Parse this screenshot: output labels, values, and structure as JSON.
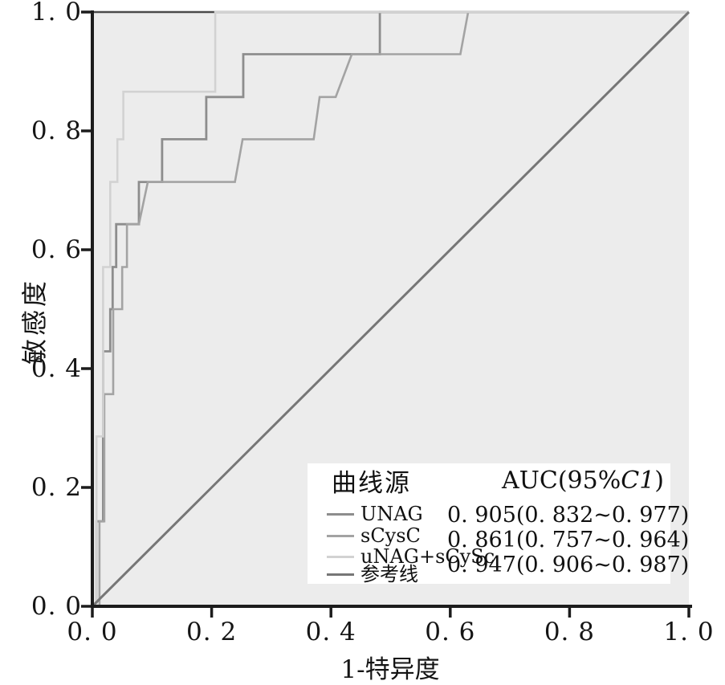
{
  "axes": {
    "x_title": "1-特异度",
    "y_title": "敏感度",
    "x_tick_labels": [
      "0. 0",
      "0. 2",
      "0. 4",
      "0. 6",
      "0. 8",
      "1. 0"
    ],
    "y_tick_labels": [
      "0. 0",
      "0. 2",
      "0. 4",
      "0. 6",
      "0. 8",
      "1. 0"
    ],
    "x_tick_values": [
      0,
      0.2,
      0.4,
      0.6,
      0.8,
      1.0
    ],
    "y_tick_values": [
      0,
      0.2,
      0.4,
      0.6,
      0.8,
      1.0
    ]
  },
  "legend": {
    "source_header": "曲线源",
    "auc_header_pre": "AUC(95%",
    "auc_header_ci": "C1",
    "auc_header_post": ")",
    "rows": [
      {
        "key": "unag",
        "label": "UNAG",
        "value": "0. 905(0. 832~0. 977)",
        "color": "#8d8d8d"
      },
      {
        "key": "scysc",
        "label": "sCysC",
        "value": "0. 861(0. 757~0. 964)",
        "color": "#a3a3a3"
      },
      {
        "key": "unag-scysc",
        "label": "uNAG+sCySc",
        "value": "0. 947(0. 906~0. 987)",
        "color": "#d2d2d2"
      },
      {
        "key": "reference",
        "label": "参考线",
        "value": "",
        "color": "#767676"
      }
    ]
  },
  "chart_data": {
    "type": "line",
    "subtype": "roc-curve",
    "title": "",
    "xlabel": "1-特异度",
    "ylabel": "敏感度",
    "xlim": [
      0,
      1
    ],
    "ylim": [
      0,
      1
    ],
    "grid": false,
    "legend_position": "lower-right",
    "x_ticks": [
      0,
      0.2,
      0.4,
      0.6,
      0.8,
      1.0
    ],
    "y_ticks": [
      0,
      0.2,
      0.4,
      0.6,
      0.8,
      1.0
    ],
    "colors": {
      "plot_background": "#ececec",
      "axis": "#1c1c1c",
      "top_frame": "#4a4a4a",
      "text": "#151515",
      "legend_background": "#ffffff"
    },
    "series": [
      {
        "key": "unag",
        "name": "UNAG",
        "auc": 0.905,
        "ci_low": 0.832,
        "ci_high": 0.977,
        "color": "#8d8d8d",
        "stroke_width": 2.8,
        "points": [
          [
            0,
            0
          ],
          [
            0.007,
            0
          ],
          [
            0.007,
            0.143
          ],
          [
            0.018,
            0.143
          ],
          [
            0.018,
            0.429
          ],
          [
            0.03,
            0.429
          ],
          [
            0.03,
            0.5
          ],
          [
            0.034,
            0.5
          ],
          [
            0.034,
            0.571
          ],
          [
            0.04,
            0.571
          ],
          [
            0.04,
            0.643
          ],
          [
            0.078,
            0.643
          ],
          [
            0.078,
            0.714
          ],
          [
            0.117,
            0.714
          ],
          [
            0.117,
            0.786
          ],
          [
            0.191,
            0.786
          ],
          [
            0.191,
            0.857
          ],
          [
            0.253,
            0.857
          ],
          [
            0.253,
            0.929
          ],
          [
            0.482,
            0.929
          ],
          [
            0.482,
            1
          ],
          [
            1,
            1
          ]
        ]
      },
      {
        "key": "scysc",
        "name": "sCysC",
        "auc": 0.861,
        "ci_low": 0.757,
        "ci_high": 0.964,
        "color": "#a3a3a3",
        "stroke_width": 2.6,
        "points": [
          [
            0,
            0
          ],
          [
            0.012,
            0
          ],
          [
            0.012,
            0.143
          ],
          [
            0.02,
            0.143
          ],
          [
            0.02,
            0.357
          ],
          [
            0.035,
            0.357
          ],
          [
            0.035,
            0.5
          ],
          [
            0.05,
            0.5
          ],
          [
            0.05,
            0.571
          ],
          [
            0.058,
            0.571
          ],
          [
            0.058,
            0.643
          ],
          [
            0.078,
            0.643
          ],
          [
            0.093,
            0.714
          ],
          [
            0.239,
            0.714
          ],
          [
            0.252,
            0.786
          ],
          [
            0.371,
            0.786
          ],
          [
            0.381,
            0.857
          ],
          [
            0.408,
            0.857
          ],
          [
            0.435,
            0.929
          ],
          [
            0.617,
            0.929
          ],
          [
            0.63,
            1
          ],
          [
            1,
            1
          ]
        ]
      },
      {
        "key": "unag-scysc",
        "name": "uNAG+sCySc",
        "auc": 0.947,
        "ci_low": 0.906,
        "ci_high": 0.987,
        "color": "#d2d2d2",
        "stroke_width": 2.6,
        "points": [
          [
            0,
            0
          ],
          [
            0.007,
            0
          ],
          [
            0.007,
            0.286
          ],
          [
            0.018,
            0.286
          ],
          [
            0.018,
            0.571
          ],
          [
            0.03,
            0.571
          ],
          [
            0.03,
            0.714
          ],
          [
            0.042,
            0.714
          ],
          [
            0.042,
            0.786
          ],
          [
            0.052,
            0.786
          ],
          [
            0.052,
            0.866
          ],
          [
            0.206,
            0.866
          ],
          [
            0.206,
            1
          ],
          [
            1,
            1
          ]
        ]
      },
      {
        "key": "reference",
        "name": "参考线",
        "color": "#767676",
        "stroke_width": 3,
        "points": [
          [
            0,
            0
          ],
          [
            1,
            1
          ]
        ]
      }
    ]
  }
}
